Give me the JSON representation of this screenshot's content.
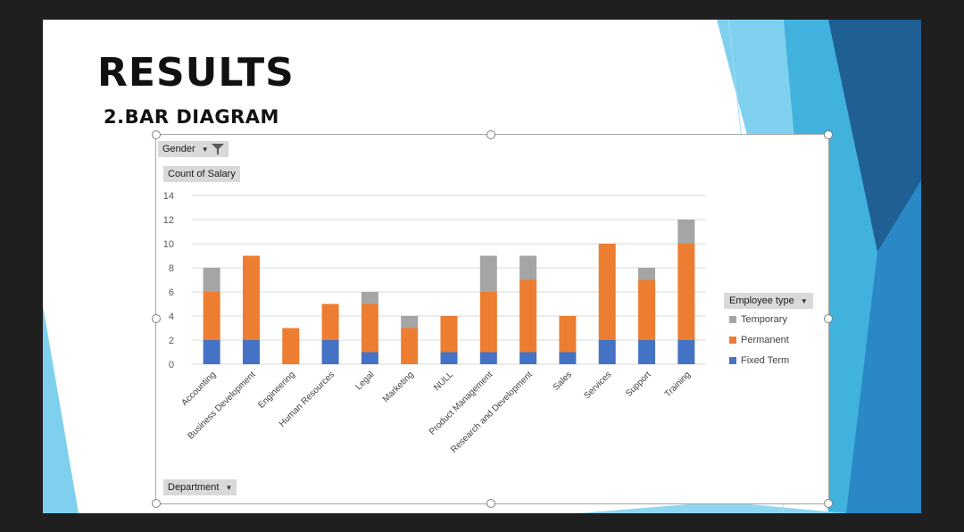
{
  "slide": {
    "title": "RESULTS",
    "subtitle": "2.BAR DIAGRAM"
  },
  "pivot": {
    "filter_label": "Gender",
    "value_label": "Count of Salary",
    "axis_field_label": "Department",
    "legend_field_label": "Employee type"
  },
  "colors": {
    "fixed_term": "#4472c4",
    "permanent": "#ed7d31",
    "temporary": "#a5a5a5",
    "accent_light": "#74cdee",
    "accent_mid": "#3aa8d8",
    "accent_dark": "#1f5f94"
  },
  "chart_data": {
    "type": "bar",
    "stacked": true,
    "categories": [
      "Accounting",
      "Business Development",
      "Engineering",
      "Human Resources",
      "Legal",
      "Marketing",
      "NULL",
      "Product Management",
      "Research and Development",
      "Sales",
      "Services",
      "Support",
      "Training"
    ],
    "series": [
      {
        "name": "Fixed Term",
        "values": [
          2,
          2,
          0,
          2,
          1,
          0,
          1,
          1,
          1,
          1,
          2,
          2,
          2
        ]
      },
      {
        "name": "Permanent",
        "values": [
          4,
          7,
          3,
          3,
          4,
          3,
          3,
          5,
          6,
          3,
          8,
          5,
          8
        ]
      },
      {
        "name": "Temporary",
        "values": [
          2,
          0,
          0,
          0,
          1,
          1,
          0,
          3,
          2,
          0,
          0,
          1,
          2
        ]
      }
    ],
    "ylim": [
      0,
      14
    ],
    "yticks": [
      "0",
      "2",
      "4",
      "6",
      "8",
      "10",
      "12",
      "14"
    ],
    "grid": true,
    "legend_order": [
      "Temporary",
      "Permanent",
      "Fixed Term"
    ],
    "legend_position": "right"
  }
}
